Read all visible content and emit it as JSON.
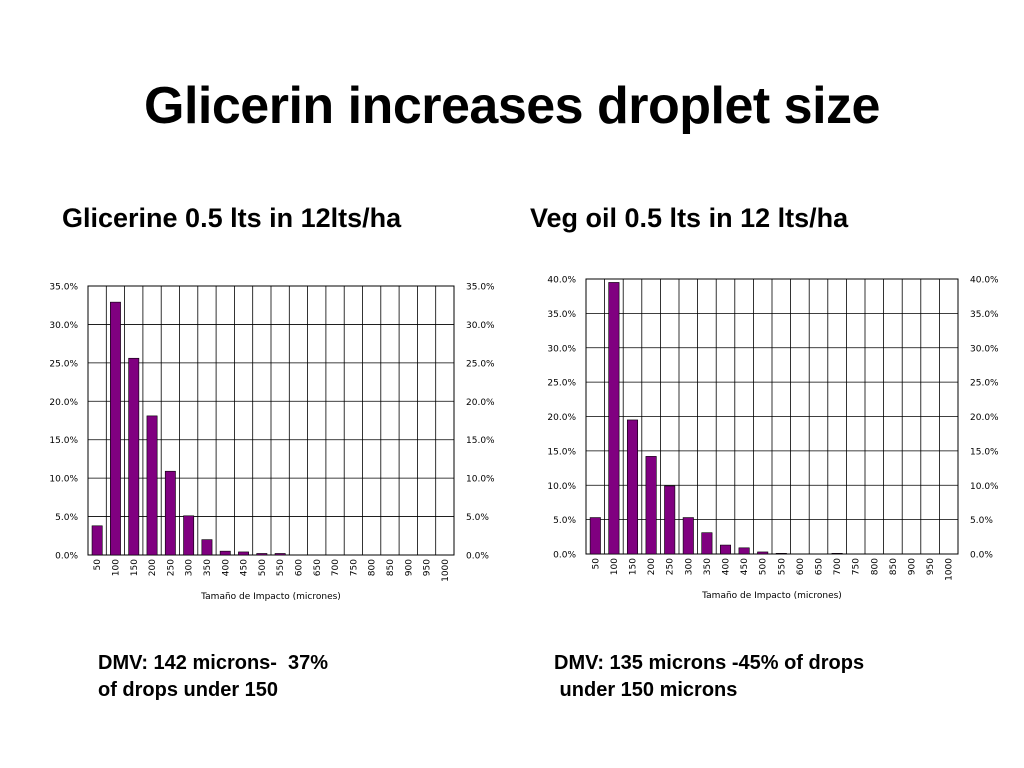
{
  "slide": {
    "title": "Glicerin increases droplet size"
  },
  "left": {
    "heading": "Glicerine 0.5 lts in 12lts/ha",
    "note_line1": "DMV: 142 microns-  37%",
    "note_line2": "of drops under 150"
  },
  "right": {
    "heading": "Veg oil 0.5 lts in 12 lts/ha",
    "note_line1": "DMV: 135 microns -45% of drops",
    "note_line2": " under 150 microns"
  },
  "colors": {
    "bar": "#800080",
    "bar_stroke": "#000000",
    "grid": "#000000"
  },
  "chart_data": [
    {
      "type": "bar",
      "title": "",
      "xlabel": "Tamaño de Impacto (micrones)",
      "ylabel": "",
      "categories": [
        "50",
        "100",
        "150",
        "200",
        "250",
        "300",
        "350",
        "400",
        "450",
        "500",
        "550",
        "600",
        "650",
        "700",
        "750",
        "800",
        "850",
        "900",
        "950",
        "1000"
      ],
      "values": [
        3.8,
        32.9,
        25.6,
        18.1,
        10.9,
        5.1,
        2.0,
        0.5,
        0.4,
        0.2,
        0.2,
        0,
        0,
        0,
        0,
        0,
        0,
        0,
        0,
        0
      ],
      "ylim": [
        0,
        35
      ],
      "yticks": [
        "0.0%",
        "5.0%",
        "10.0%",
        "15.0%",
        "20.0%",
        "25.0%",
        "30.0%",
        "35.0%"
      ],
      "grid": true,
      "right_axis": true,
      "legend": "none"
    },
    {
      "type": "bar",
      "title": "",
      "xlabel": "Tamaño de Impacto (micrones)",
      "ylabel": "",
      "categories": [
        "50",
        "100",
        "150",
        "200",
        "250",
        "300",
        "350",
        "400",
        "450",
        "500",
        "550",
        "600",
        "650",
        "700",
        "750",
        "800",
        "850",
        "900",
        "950",
        "1000"
      ],
      "values": [
        5.3,
        39.5,
        19.5,
        14.2,
        9.9,
        5.3,
        3.1,
        1.3,
        0.9,
        0.3,
        0.1,
        0,
        0,
        0.1,
        0,
        0,
        0,
        0,
        0,
        0
      ],
      "ylim": [
        0,
        40
      ],
      "yticks": [
        "0.0%",
        "5.0%",
        "10.0%",
        "15.0%",
        "20.0%",
        "25.0%",
        "30.0%",
        "35.0%",
        "40.0%"
      ],
      "grid": true,
      "right_axis": true,
      "legend": "none"
    }
  ]
}
